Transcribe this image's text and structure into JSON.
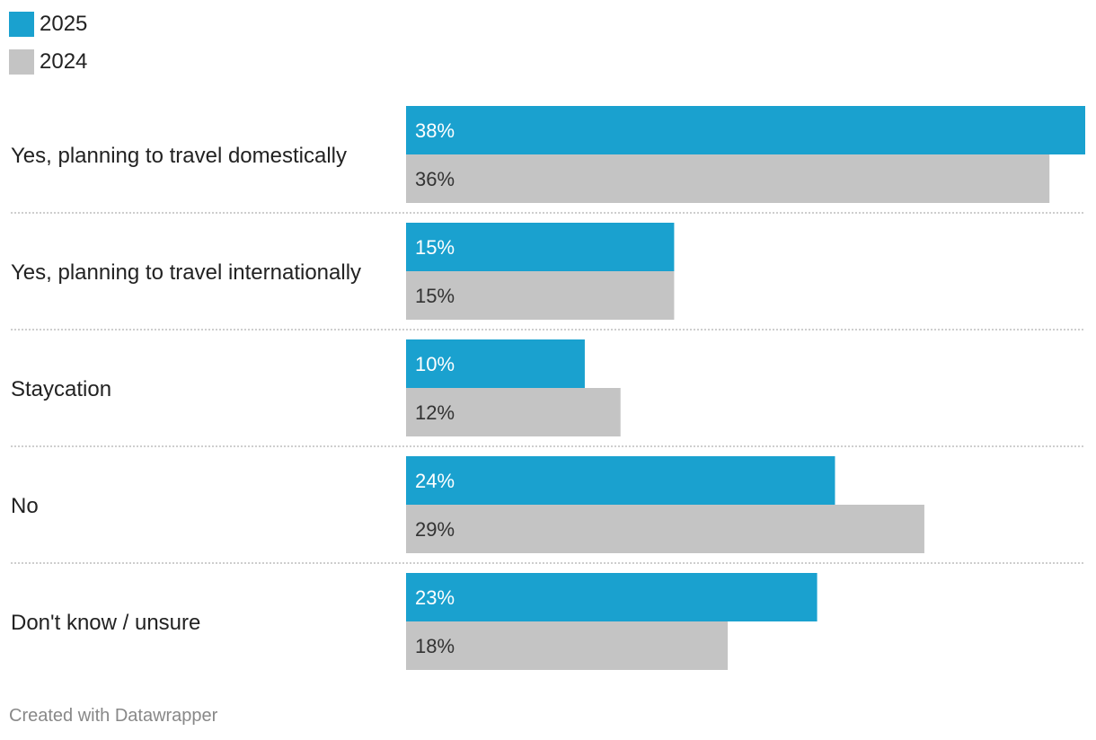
{
  "chart_data": {
    "type": "bar",
    "orientation": "horizontal",
    "categories": [
      "Yes, planning to travel domestically",
      "Yes, planning to travel internationally",
      "Staycation",
      "No",
      "Don't know / unsure"
    ],
    "series": [
      {
        "name": "2025",
        "color": "#1aa1cf",
        "values": [
          38,
          15,
          10,
          24,
          23
        ],
        "labels": [
          "38%",
          "15%",
          "10%",
          "24%",
          "23%"
        ]
      },
      {
        "name": "2024",
        "color": "#c4c4c4",
        "values": [
          36,
          15,
          12,
          29,
          18
        ],
        "labels": [
          "36%",
          "15%",
          "12%",
          "29%",
          "18%"
        ]
      }
    ],
    "xlim": [
      0,
      38
    ],
    "legend_position": "top-left",
    "grid": false,
    "separators": "dotted"
  },
  "footer": {
    "credit": "Created with Datawrapper"
  }
}
